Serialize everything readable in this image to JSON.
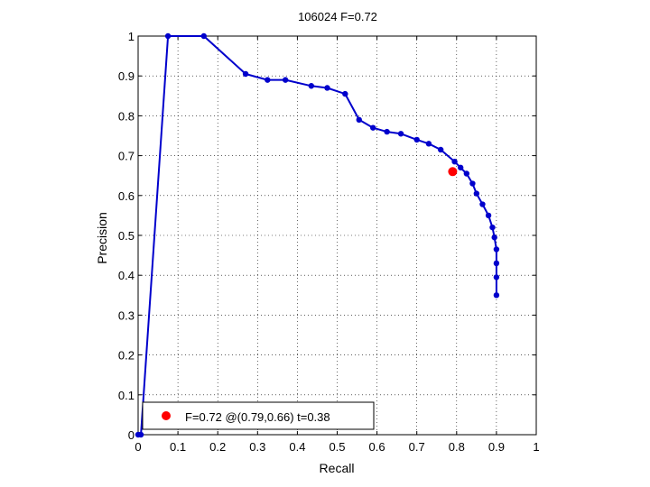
{
  "chart_data": {
    "type": "line",
    "title": "106024 F=0.72",
    "xlabel": "Recall",
    "ylabel": "Precision",
    "xlim": [
      0,
      1
    ],
    "ylim": [
      0,
      1
    ],
    "xticks": [
      0,
      0.1,
      0.2,
      0.3,
      0.4,
      0.5,
      0.6,
      0.7,
      0.8,
      0.9,
      1
    ],
    "yticks": [
      0,
      0.1,
      0.2,
      0.3,
      0.4,
      0.5,
      0.6,
      0.7,
      0.8,
      0.9,
      1
    ],
    "xtick_labels": [
      "0",
      "0.1",
      "0.2",
      "0.3",
      "0.4",
      "0.5",
      "0.6",
      "0.7",
      "0.8",
      "0.9",
      "1"
    ],
    "ytick_labels": [
      "0",
      "0.1",
      "0.2",
      "0.3",
      "0.4",
      "0.5",
      "0.6",
      "0.7",
      "0.8",
      "0.9",
      "1"
    ],
    "grid": true,
    "legend_position": "bottom-left",
    "series": [
      {
        "color": "#0000cc",
        "x": [
          0.9,
          0.9,
          0.9,
          0.9,
          0.895,
          0.89,
          0.88,
          0.865,
          0.85,
          0.84,
          0.825,
          0.81,
          0.795,
          0.76,
          0.73,
          0.7,
          0.66,
          0.625,
          0.59,
          0.555,
          0.52,
          0.475,
          0.435,
          0.37,
          0.325,
          0.27,
          0.165,
          0.075,
          0.007,
          0.0
        ],
        "y": [
          0.35,
          0.395,
          0.43,
          0.465,
          0.495,
          0.52,
          0.55,
          0.578,
          0.605,
          0.63,
          0.655,
          0.67,
          0.685,
          0.715,
          0.73,
          0.74,
          0.755,
          0.76,
          0.77,
          0.79,
          0.855,
          0.87,
          0.875,
          0.89,
          0.89,
          0.905,
          1.0,
          1.0,
          0.0,
          0.0
        ]
      }
    ],
    "highlight": {
      "x": 0.79,
      "y": 0.66,
      "color": "#ff0000",
      "label": "F=0.72 @(0.79,0.66) t=0.38"
    }
  }
}
